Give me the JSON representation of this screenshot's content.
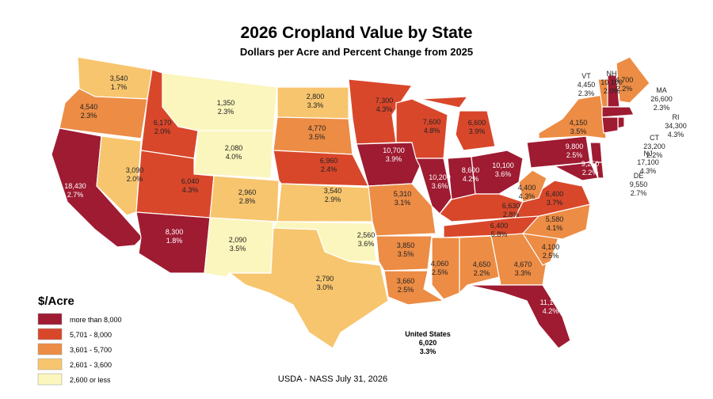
{
  "title": "2026 Cropland Value by State",
  "subtitle": "Dollars per Acre and Percent Change from 2025",
  "states": [
    {
      "value": "3,540",
      "change": "1.7%",
      "color": "#f7c56e"
    },
    {
      "value": "4,540",
      "change": "2.3%",
      "color": "#ec8c45"
    },
    {
      "value": "18,430",
      "change": "2.7%",
      "color": "#9e1b32"
    },
    {
      "value": "3,090",
      "change": "2.0%",
      "color": "#f7c56e"
    },
    {
      "value": "6,170",
      "change": "2.0%",
      "color": "#d9472b"
    },
    {
      "value": "1,350",
      "change": "2.3%",
      "color": "#fbf6bd"
    },
    {
      "value": "2,080",
      "change": "4.0%",
      "color": "#fbf6bd"
    },
    {
      "value": "6,040",
      "change": "4.3%",
      "color": "#d9472b"
    },
    {
      "value": "2,960",
      "change": "2.8%",
      "color": "#f7c56e"
    },
    {
      "value": "8,300",
      "change": "1.8%",
      "color": "#9e1b32"
    },
    {
      "value": "2,090",
      "change": "3.5%",
      "color": "#fbf6bd"
    },
    {
      "value": "2,800",
      "change": "3.3%",
      "color": "#f7c56e"
    },
    {
      "value": "4,770",
      "change": "3.5%",
      "color": "#ec8c45"
    },
    {
      "value": "6,960",
      "change": "2.4%",
      "color": "#d9472b"
    },
    {
      "value": "3,540",
      "change": "2.9%",
      "color": "#f7c56e"
    },
    {
      "value": "2,560",
      "change": "3.6%",
      "color": "#fbf6bd"
    },
    {
      "value": "2,790",
      "change": "3.0%",
      "color": "#f7c56e"
    },
    {
      "value": "7,300",
      "change": "4.3%",
      "color": "#d9472b"
    },
    {
      "value": "10,700",
      "change": "3.9%",
      "color": "#9e1b32"
    },
    {
      "value": "5,310",
      "change": "3.1%",
      "color": "#ec8c45"
    },
    {
      "value": "3,850",
      "change": "3.5%",
      "color": "#ec8c45"
    },
    {
      "value": "3,660",
      "change": "2.5%",
      "color": "#ec8c45"
    },
    {
      "value": "7,600",
      "change": "4.8%",
      "color": "#d9472b"
    },
    {
      "value": "10,200",
      "change": "3.6%",
      "color": "#9e1b32"
    },
    {
      "value": "6,600",
      "change": "3.9%",
      "color": "#d9472b"
    },
    {
      "value": "8,600",
      "change": "4.2%",
      "color": "#9e1b32"
    },
    {
      "value": "10,100",
      "change": "3.6%",
      "color": "#9e1b32"
    },
    {
      "value": "6,630",
      "change": "2.8%",
      "color": "#d9472b"
    },
    {
      "value": "6,400",
      "change": "5.8%",
      "color": "#d9472b"
    },
    {
      "value": "4,060",
      "change": "2.5%",
      "color": "#ec8c45"
    },
    {
      "value": "4,650",
      "change": "2.2%",
      "color": "#ec8c45"
    },
    {
      "value": "4,670",
      "change": "3.3%",
      "color": "#ec8c45"
    },
    {
      "value": "11,100",
      "change": "4.2%",
      "color": "#9e1b32"
    },
    {
      "value": "4,100",
      "change": "2.5%",
      "color": "#ec8c45"
    },
    {
      "value": "5,580",
      "change": "4.1%",
      "color": "#ec8c45"
    },
    {
      "value": "6,400",
      "change": "3.7%",
      "color": "#d9472b"
    },
    {
      "value": "4,400",
      "change": "4.3%",
      "color": "#ec8c45"
    },
    {
      "value": "9,800",
      "change": "2.5%",
      "color": "#9e1b32"
    },
    {
      "value": "4,150",
      "change": "3.5%",
      "color": "#ec8c45"
    },
    {
      "value": "9,250",
      "change": "2.2%",
      "color": "#9e1b32"
    },
    {
      "value": "4,700",
      "change": "2.2%",
      "color": "#ec8c45"
    },
    {
      "abbr": "VT",
      "value": "4,450",
      "change": "2.3%",
      "color": "#ec8c45"
    },
    {
      "abbr": "NH",
      "value": "10,100",
      "change": "2.0%",
      "color": "#9e1b32"
    },
    {
      "abbr": "MA",
      "value": "26,600",
      "change": "2.3%",
      "color": "#9e1b32"
    },
    {
      "abbr": "RI",
      "value": "34,300",
      "change": "4.3%",
      "color": "#9e1b32"
    },
    {
      "abbr": "CT",
      "value": "23,200",
      "change": "2.2%",
      "color": "#9e1b32"
    },
    {
      "abbr": "NJ",
      "value": "17,100",
      "change": "4.3%",
      "color": "#9e1b32"
    },
    {
      "abbr": "DE",
      "value": "9,550",
      "change": "2.7%",
      "color": "#9e1b32"
    }
  ],
  "us": {
    "name": "United States",
    "value": "6,020",
    "change": "3.3%"
  },
  "legend": {
    "title": "$/Acre",
    "items": [
      {
        "label": "more than 8,000",
        "color": "#9e1b32"
      },
      {
        "label": "5,701 - 8,000",
        "color": "#d9472b"
      },
      {
        "label": "3,601 - 5,700",
        "color": "#ec8c45"
      },
      {
        "label": "2,601 - 3,600",
        "color": "#f7c56e"
      },
      {
        "label": "2,600 or less",
        "color": "#fbf6bd"
      }
    ]
  },
  "source": "USDA - NASS July 31, 2026"
}
